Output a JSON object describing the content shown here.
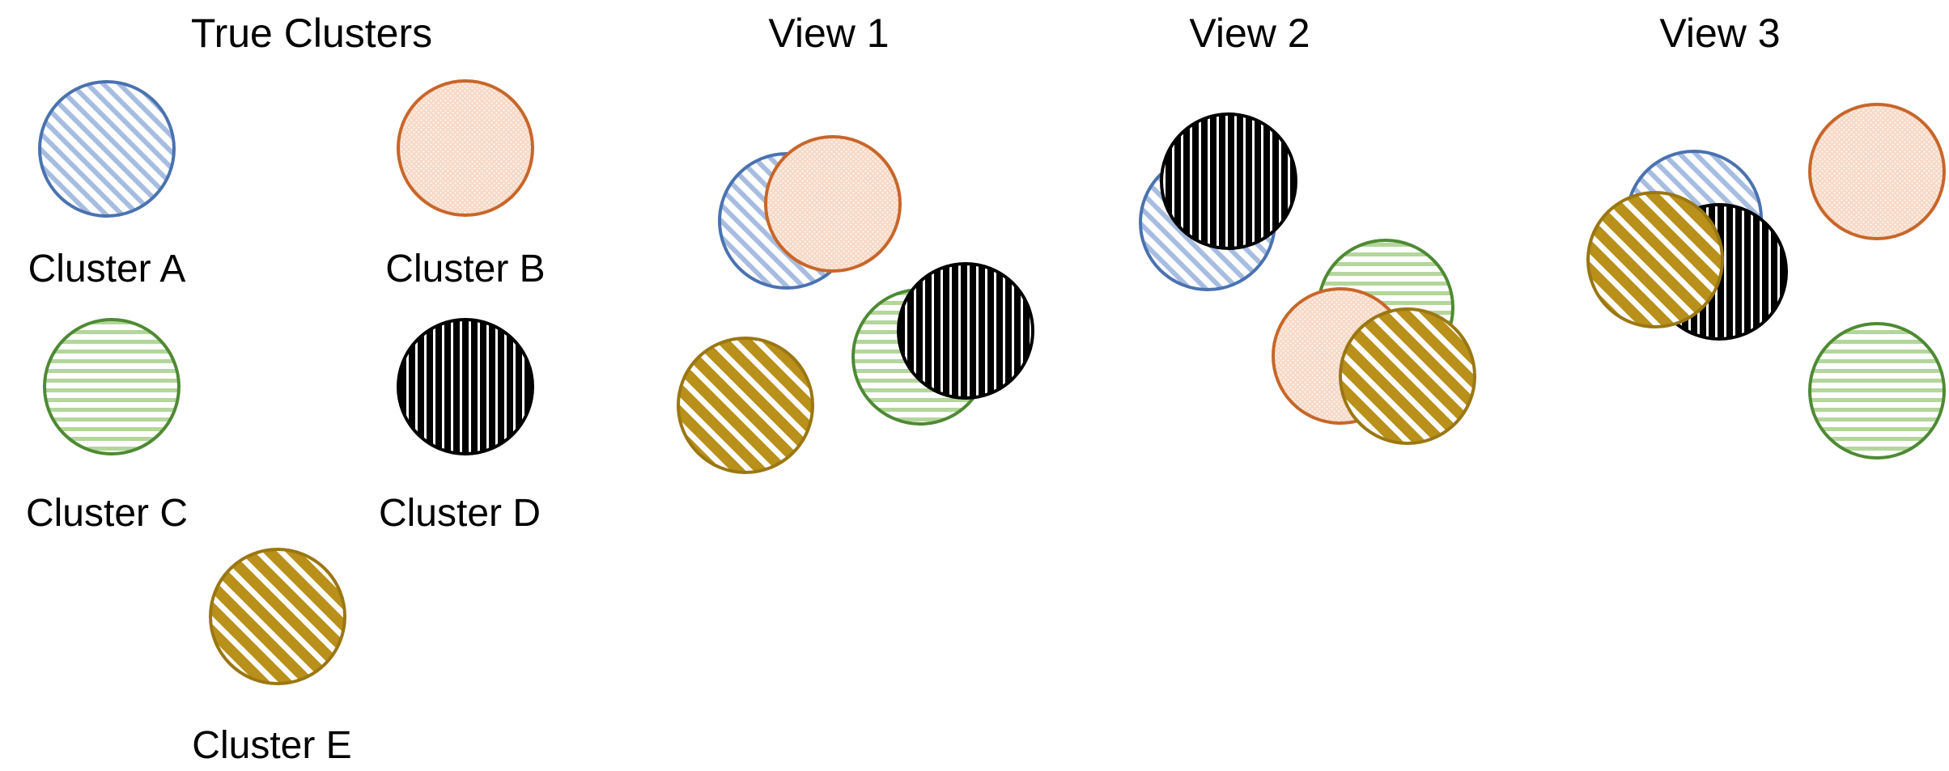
{
  "panels": {
    "true_clusters": "True Clusters",
    "view1": "View 1",
    "view2": "View 2",
    "view3": "View 3"
  },
  "clusters": [
    {
      "key": "A",
      "label": "Cluster A",
      "pattern": "diagonal-light",
      "fill": "#9bb3d9",
      "stroke": "#4a72b0"
    },
    {
      "key": "B",
      "label": "Cluster B",
      "pattern": "dotted",
      "fill": "#f7d6c2",
      "stroke": "#c8662a"
    },
    {
      "key": "C",
      "label": "Cluster C",
      "pattern": "horizontal-lines",
      "fill": "#a9d18e",
      "stroke": "#4e8a33"
    },
    {
      "key": "D",
      "label": "Cluster D",
      "pattern": "vertical-lines",
      "fill": "#000000",
      "stroke": "#000000"
    },
    {
      "key": "E",
      "label": "Cluster E",
      "pattern": "wide-diagonal",
      "fill": "#b8901a",
      "stroke": "#9a7712"
    }
  ]
}
